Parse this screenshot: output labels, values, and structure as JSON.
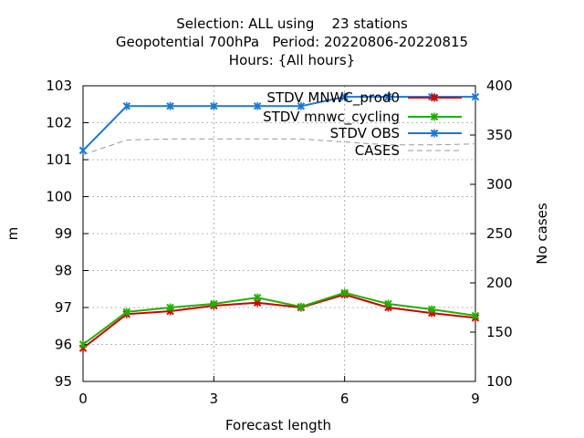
{
  "title_lines": [
    "Selection: ALL using    23 stations",
    "Geopotential 700hPa   Period: 20220806-20220815",
    "Hours: {All hours}"
  ],
  "chart_data": {
    "type": "line",
    "xlabel": "Forecast length",
    "ylabel": "m",
    "y2label": "No cases",
    "x": [
      0,
      1,
      2,
      3,
      4,
      5,
      6,
      7,
      8,
      9
    ],
    "xlim": [
      0,
      9
    ],
    "xticks": [
      "0",
      "3",
      "6",
      "9"
    ],
    "ylim": [
      95,
      103
    ],
    "yticks": [
      "95",
      "96",
      "97",
      "98",
      "99",
      "100",
      "101",
      "102",
      "103"
    ],
    "y2lim": [
      100,
      400
    ],
    "y2ticks": [
      "100",
      "150",
      "200",
      "250",
      "300",
      "350",
      "400"
    ],
    "grid": true,
    "legend_position": "top-right",
    "series": [
      {
        "name": "STDV MNWC_prod0",
        "color": "#cc0000",
        "marker": "x",
        "axis": "y",
        "values": [
          95.9,
          96.82,
          96.9,
          97.05,
          97.13,
          97.0,
          97.35,
          97.0,
          96.85,
          96.72
        ]
      },
      {
        "name": "STDV mnwc_cycling",
        "color": "#22b000",
        "marker": "x",
        "axis": "y",
        "values": [
          96.0,
          96.88,
          97.0,
          97.1,
          97.27,
          97.02,
          97.4,
          97.1,
          96.95,
          96.78
        ]
      },
      {
        "name": "STDV OBS",
        "color": "#1e78d2",
        "marker": "x",
        "axis": "y",
        "values": [
          101.25,
          102.45,
          102.45,
          102.45,
          102.45,
          102.45,
          102.7,
          102.7,
          102.7,
          102.7
        ]
      },
      {
        "name": "CASES",
        "color": "#999999",
        "dashed": true,
        "axis": "y2",
        "values": [
          330,
          345,
          346,
          346,
          346,
          346,
          343,
          340,
          340,
          341
        ]
      }
    ]
  }
}
